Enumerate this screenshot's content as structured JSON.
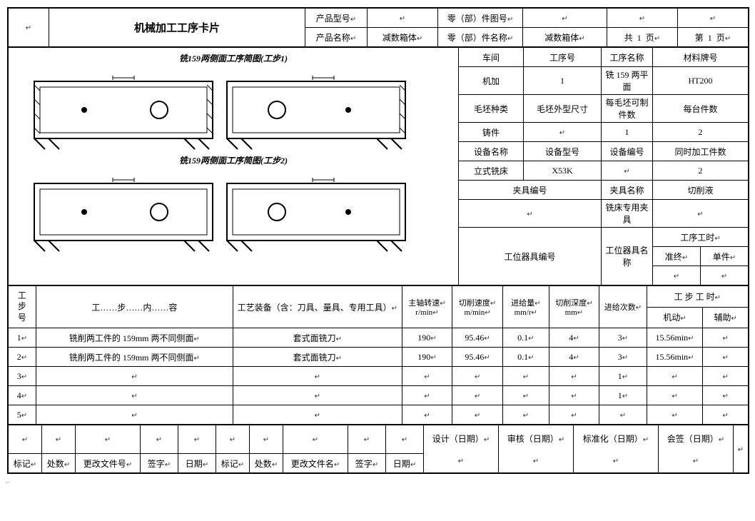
{
  "header": {
    "title": "机械加工工序卡片",
    "productModelLabel": "产品型号",
    "productNameLabel": "产品名称",
    "productName": "减数箱体",
    "partDrawingNoLabel": "零（部）件图号",
    "partNameLabel": "零（部）件名称",
    "partName": "减数箱体",
    "totalPagePrefix": "共",
    "totalPageNum": "1",
    "totalPageSuffix": "页",
    "currentPagePrefix": "第",
    "currentPageNum": "1",
    "currentPageSuffix": "页"
  },
  "drawings": {
    "label1": "铣159两侧面工序简图(工步1)",
    "label2": "铣159两侧面工序简图(工步2)"
  },
  "infoGrid": {
    "r1c1": "车间",
    "r1c2": "工序号",
    "r1c3": "工序名称",
    "r1c4": "材料牌号",
    "r2c1": "机加",
    "r2c2": "1",
    "r2c3": "铣 159 两平面",
    "r2c4": "HT200",
    "r3c1": "毛坯种类",
    "r3c2": "毛坯外型尺寸",
    "r3c3": "每毛坯可制件数",
    "r3c4": "每台件数",
    "r4c1": "铸件",
    "r4c2": "",
    "r4c3": "1",
    "r4c4": "2",
    "r5c1": "设备名称",
    "r5c2": "设备型号",
    "r5c3": "设备编号",
    "r5c4": "同时加工件数",
    "r6c1": "立式铣床",
    "r6c2": "X53K",
    "r6c3": "",
    "r6c4": "2",
    "r7c1": "夹具编号",
    "r7c2": "夹具名称",
    "r7c3": "切削液",
    "r8c1": "",
    "r8c2": "铣床专用夹具",
    "r8c3": "",
    "r9c1": "工位器具编号",
    "r9c2": "工位器具名称",
    "r9c3": "工序工时",
    "r9c3a": "准终",
    "r9c3b": "单件"
  },
  "stepTable": {
    "col_stepNo": "工步号",
    "col_content": "工……步……内……容",
    "col_tooling": "工艺装备（含：刀具、量具、专用工具）",
    "col_spindle": "主轴转速",
    "col_spindle_unit": "r/min",
    "col_cutspeed": "切削速度",
    "col_cutspeed_unit": "m/min",
    "col_feed": "进给量",
    "col_feed_unit": "mm/r",
    "col_depth": "切削深度",
    "col_depth_unit": "mm",
    "col_passes": "进给次数",
    "col_time": "工 步 工 时",
    "col_time_a": "机动",
    "col_time_b": "辅助",
    "rows": [
      {
        "no": "1",
        "content": "铣削两工件的 159mm 两不同侧面",
        "tool": "套式面铣刀",
        "spd": "190",
        "vc": "95.46",
        "f": "0.1",
        "ap": "4",
        "n": "3",
        "t1": "15.56min",
        "t2": ""
      },
      {
        "no": "2",
        "content": "铣削两工件的 159mm 两不同侧面",
        "tool": "套式面铣刀",
        "spd": "190",
        "vc": "95.46",
        "f": "0.1",
        "ap": "4",
        "n": "3",
        "t1": "15.56min",
        "t2": ""
      },
      {
        "no": "3",
        "content": "",
        "tool": "",
        "spd": "",
        "vc": "",
        "f": "",
        "ap": "",
        "n": "1",
        "t1": "",
        "t2": ""
      },
      {
        "no": "4",
        "content": "",
        "tool": "",
        "spd": "",
        "vc": "",
        "f": "",
        "ap": "",
        "n": "1",
        "t1": "",
        "t2": ""
      },
      {
        "no": "5",
        "content": "",
        "tool": "",
        "spd": "",
        "vc": "",
        "f": "",
        "ap": "",
        "n": "",
        "t1": "",
        "t2": ""
      }
    ]
  },
  "footer": {
    "design": "设计（日期）",
    "check": "审核（日期）",
    "std": "标准化（日期）",
    "sign": "会签（日期）",
    "mark": "标记",
    "count": "处数",
    "changeFileNo": "更改文件号",
    "sig": "签字",
    "date": "日期",
    "changeFileName": "更改文件名"
  },
  "glyph": "↵"
}
